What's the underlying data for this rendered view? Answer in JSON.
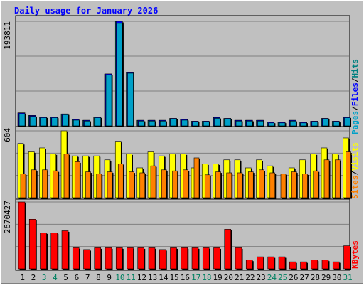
{
  "chart_data": [
    {
      "type": "bar",
      "title": "Daily usage for January 2026",
      "categories": [
        "1",
        "2",
        "3",
        "4",
        "5",
        "6",
        "7",
        "8",
        "9",
        "10",
        "11",
        "12",
        "13",
        "14",
        "15",
        "16",
        "17",
        "18",
        "19",
        "20",
        "21",
        "22",
        "23",
        "24",
        "25",
        "26",
        "27",
        "28",
        "29",
        "30",
        "31"
      ],
      "weekend_days": [
        "3",
        "4",
        "10",
        "11",
        "17",
        "18",
        "24",
        "25",
        "31"
      ],
      "ylabel_top": "193811",
      "ylim": [
        0,
        193811
      ],
      "legend": [
        {
          "label": "Pages",
          "color": "#00a0c8"
        },
        {
          "label": "Files",
          "color": "#0000ff"
        },
        {
          "label": "Hits",
          "color": "#008080"
        }
      ],
      "series": [
        {
          "name": "Hits",
          "color": "#008080",
          "values": [
            24100,
            19200,
            16600,
            16600,
            22100,
            12000,
            10300,
            16600,
            96200,
            193811,
            99700,
            10300,
            10300,
            10300,
            13800,
            12000,
            8600,
            8600,
            15500,
            13800,
            10300,
            10300,
            10300,
            6900,
            6900,
            10300,
            6900,
            8600,
            13800,
            8600,
            16600
          ]
        },
        {
          "name": "Files",
          "color": "#0000ff",
          "values": [
            24100,
            19200,
            16600,
            16600,
            22100,
            12000,
            10300,
            16600,
            96200,
            193811,
            99700,
            10300,
            10300,
            10300,
            13800,
            12000,
            8600,
            8600,
            15500,
            13800,
            10300,
            10300,
            10300,
            6900,
            6900,
            10300,
            6900,
            8600,
            13800,
            8600,
            16600
          ]
        },
        {
          "name": "Pages",
          "color": "#00a0c8",
          "values": [
            22500,
            17600,
            15100,
            15100,
            20600,
            10600,
            8900,
            15100,
            94100,
            190000,
            97600,
            8900,
            8900,
            8900,
            12300,
            10600,
            7200,
            7200,
            14000,
            12300,
            8900,
            8900,
            8900,
            5500,
            5500,
            8900,
            5500,
            7200,
            12300,
            7200,
            15100
          ]
        }
      ]
    },
    {
      "type": "bar",
      "ylabel_top": "604",
      "ylim": [
        0,
        604
      ],
      "legend": [
        {
          "label": "Sites",
          "color": "#ff8000"
        },
        {
          "label": "Visits",
          "color": "#ffff00"
        }
      ],
      "series": [
        {
          "name": "Visits",
          "color": "#ffff00",
          "values": [
            490,
            414,
            450,
            396,
            604,
            378,
            378,
            378,
            342,
            510,
            396,
            270,
            414,
            378,
            396,
            396,
            270,
            306,
            306,
            342,
            342,
            270,
            342,
            288,
            0,
            270,
            342,
            396,
            450,
            396,
            540
          ]
        },
        {
          "name": "Sites",
          "color": "#ff8000",
          "values": [
            216,
            252,
            252,
            243,
            396,
            325,
            234,
            216,
            234,
            306,
            234,
            225,
            288,
            252,
            243,
            252,
            360,
            207,
            234,
            225,
            225,
            234,
            252,
            225,
            216,
            234,
            216,
            243,
            342,
            342,
            414
          ]
        }
      ]
    },
    {
      "type": "bar",
      "ylabel_top": "2670427",
      "ylim": [
        0,
        2670427
      ],
      "legend": [
        {
          "label": "KBytes",
          "color": "#ff0000"
        }
      ],
      "series": [
        {
          "name": "KBytes",
          "color": "#ff0000",
          "values": [
            2670427,
            1980000,
            1440000,
            1440000,
            1520000,
            840000,
            770000,
            840000,
            840000,
            840000,
            840000,
            840000,
            840000,
            770000,
            840000,
            840000,
            840000,
            840000,
            840000,
            1580000,
            840000,
            350000,
            480000,
            480000,
            480000,
            280000,
            280000,
            350000,
            350000,
            280000,
            920000
          ]
        }
      ]
    }
  ]
}
